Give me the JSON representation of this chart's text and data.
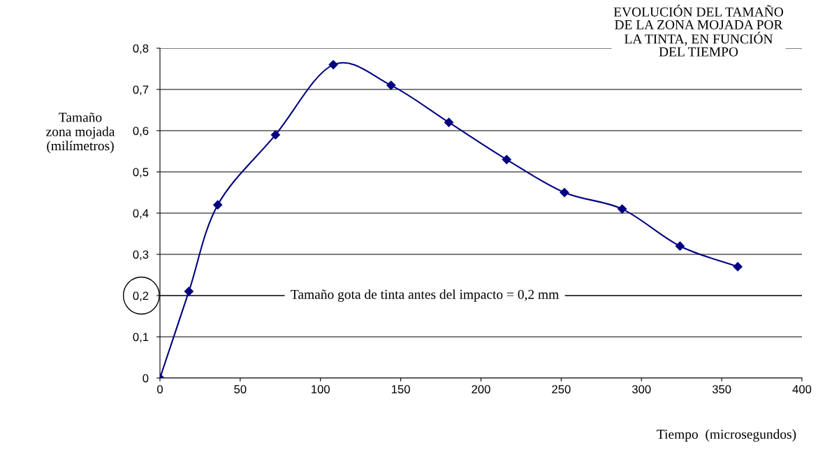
{
  "chart_data": {
    "type": "line",
    "title": "EVOLUCIÓN DEL TAMAÑO\nDE LA ZONA MOJADA POR\nLA TINTA, EN FUNCIÓN\nDEL TIEMPO",
    "xlabel": "Tiempo  (microsegundos)",
    "ylabel": "Tamaño\nzona mojada\n(milímetros)",
    "x": [
      0,
      18,
      36,
      72,
      108,
      144,
      180,
      216,
      252,
      288,
      324,
      360
    ],
    "series": [
      {
        "color": "#000080",
        "values": [
          0,
          0.21,
          0.42,
          0.59,
          0.76,
          0.71,
          0.62,
          0.53,
          0.45,
          0.41,
          0.32,
          0.27
        ]
      }
    ],
    "marker": "diamond",
    "xlim": [
      0,
      400
    ],
    "xticks": [
      0,
      50,
      100,
      150,
      200,
      250,
      300,
      350,
      400
    ],
    "ylim": [
      0,
      0.8
    ],
    "yticks": [
      0,
      {
        "value": 0.1,
        "label": "0,1"
      },
      {
        "value": 0.2,
        "label": "0,2"
      },
      {
        "value": 0.3,
        "label": "0,3"
      },
      {
        "value": 0.4,
        "label": "0,4"
      },
      {
        "value": 0.5,
        "label": "0,5"
      },
      {
        "value": 0.6,
        "label": "0,6"
      },
      {
        "value": 0.7,
        "label": "0,7"
      },
      {
        "value": 0.8,
        "label": "0,8"
      }
    ],
    "grid": "y",
    "ref_lines": [
      {
        "axis": "y",
        "value": 0.2,
        "label": "Tamaño gota de tinta antes del impacto = 0,2 mm",
        "color": "#000000"
      }
    ]
  }
}
